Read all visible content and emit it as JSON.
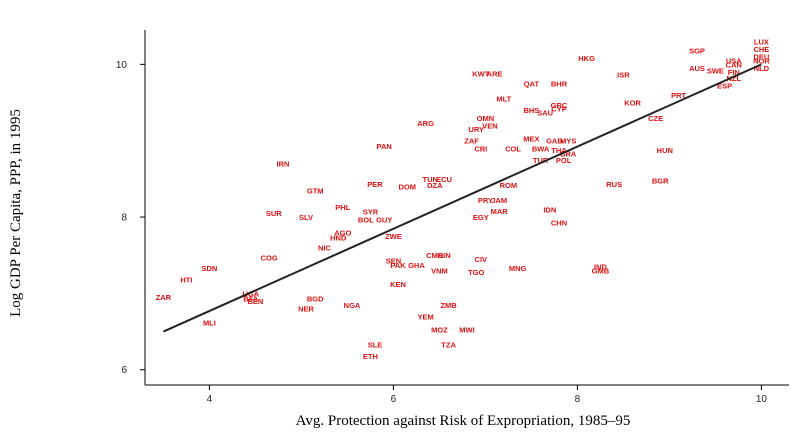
{
  "chart_data": {
    "type": "scatter",
    "title": "",
    "xlabel": "Avg. Protection against Risk of Expropriation, 1985–95",
    "ylabel": "Log GDP Per Capita, PPP, in 1995",
    "xlim": [
      3.3,
      10.3
    ],
    "ylim": [
      5.8,
      10.45
    ],
    "xticks": [
      4,
      6,
      8,
      10
    ],
    "yticks": [
      6,
      8,
      10
    ],
    "grid": false,
    "legend": "none",
    "point_color": "#e01010",
    "line_color": "#222222",
    "fit_line": {
      "x": [
        3.5,
        10.0
      ],
      "y": [
        6.5,
        10.0
      ]
    },
    "points": [
      {
        "label": "LUX",
        "x": 10.0,
        "y": 10.3
      },
      {
        "label": "CHE",
        "x": 10.0,
        "y": 10.2
      },
      {
        "label": "DEU",
        "x": 10.0,
        "y": 10.1
      },
      {
        "label": "NOR",
        "x": 10.0,
        "y": 10.05
      },
      {
        "label": "NLD",
        "x": 10.0,
        "y": 9.95
      },
      {
        "label": "SGP",
        "x": 9.3,
        "y": 10.18
      },
      {
        "label": "USA",
        "x": 9.7,
        "y": 10.05
      },
      {
        "label": "CAN",
        "x": 9.7,
        "y": 10.0
      },
      {
        "label": "AUS",
        "x": 9.3,
        "y": 9.95
      },
      {
        "label": "SWE",
        "x": 9.5,
        "y": 9.92
      },
      {
        "label": "FIN",
        "x": 9.7,
        "y": 9.9
      },
      {
        "label": "NZL",
        "x": 9.7,
        "y": 9.82
      },
      {
        "label": "ESP",
        "x": 9.6,
        "y": 9.72
      },
      {
        "label": "PRT",
        "x": 9.1,
        "y": 9.6
      },
      {
        "label": "HKG",
        "x": 8.1,
        "y": 10.08
      },
      {
        "label": "ISR",
        "x": 8.5,
        "y": 9.87
      },
      {
        "label": "KWT",
        "x": 6.95,
        "y": 9.88
      },
      {
        "label": "ARE",
        "x": 7.1,
        "y": 9.88
      },
      {
        "label": "QAT",
        "x": 7.5,
        "y": 9.75
      },
      {
        "label": "BHR",
        "x": 7.8,
        "y": 9.75
      },
      {
        "label": "MLT",
        "x": 7.2,
        "y": 9.55
      },
      {
        "label": "BHS",
        "x": 7.5,
        "y": 9.4
      },
      {
        "label": "SAU",
        "x": 7.65,
        "y": 9.37
      },
      {
        "label": "GRC",
        "x": 7.8,
        "y": 9.47
      },
      {
        "label": "CYP",
        "x": 7.8,
        "y": 9.42
      },
      {
        "label": "KOR",
        "x": 8.6,
        "y": 9.5
      },
      {
        "label": "CZE",
        "x": 8.85,
        "y": 9.3
      },
      {
        "label": "OMN",
        "x": 7.0,
        "y": 9.3
      },
      {
        "label": "VEN",
        "x": 7.05,
        "y": 9.2
      },
      {
        "label": "URY",
        "x": 6.9,
        "y": 9.15
      },
      {
        "label": "ARG",
        "x": 6.35,
        "y": 9.23
      },
      {
        "label": "ZAF",
        "x": 6.85,
        "y": 9.0
      },
      {
        "label": "CRI",
        "x": 6.95,
        "y": 8.9
      },
      {
        "label": "COL",
        "x": 7.3,
        "y": 8.9
      },
      {
        "label": "MEX",
        "x": 7.5,
        "y": 9.03
      },
      {
        "label": "GAB",
        "x": 7.75,
        "y": 9.0
      },
      {
        "label": "MYS",
        "x": 7.9,
        "y": 9.0
      },
      {
        "label": "BWA",
        "x": 7.6,
        "y": 8.9
      },
      {
        "label": "THA",
        "x": 7.8,
        "y": 8.88
      },
      {
        "label": "BRA",
        "x": 7.9,
        "y": 8.83
      },
      {
        "label": "TUR",
        "x": 7.6,
        "y": 8.75
      },
      {
        "label": "POL",
        "x": 7.85,
        "y": 8.75
      },
      {
        "label": "HUN",
        "x": 8.95,
        "y": 8.88
      },
      {
        "label": "RUS",
        "x": 8.4,
        "y": 8.43
      },
      {
        "label": "BGR",
        "x": 8.9,
        "y": 8.48
      },
      {
        "label": "PAN",
        "x": 5.9,
        "y": 8.93
      },
      {
        "label": "IRN",
        "x": 4.8,
        "y": 8.7
      },
      {
        "label": "PER",
        "x": 5.8,
        "y": 8.43
      },
      {
        "label": "DOM",
        "x": 6.15,
        "y": 8.4
      },
      {
        "label": "TUN",
        "x": 6.4,
        "y": 8.5
      },
      {
        "label": "ECU",
        "x": 6.55,
        "y": 8.5
      },
      {
        "label": "DZA",
        "x": 6.45,
        "y": 8.42
      },
      {
        "label": "ROM",
        "x": 7.25,
        "y": 8.42
      },
      {
        "label": "GTM",
        "x": 5.15,
        "y": 8.35
      },
      {
        "label": "PHL",
        "x": 5.45,
        "y": 8.13
      },
      {
        "label": "SUR",
        "x": 4.7,
        "y": 8.05
      },
      {
        "label": "SLV",
        "x": 5.05,
        "y": 8.0
      },
      {
        "label": "SYR",
        "x": 5.75,
        "y": 8.07
      },
      {
        "label": "BOL",
        "x": 5.7,
        "y": 7.97
      },
      {
        "label": "GUY",
        "x": 5.9,
        "y": 7.97
      },
      {
        "label": "PRY",
        "x": 7.0,
        "y": 8.22
      },
      {
        "label": "JAM",
        "x": 7.15,
        "y": 8.22
      },
      {
        "label": "EGY",
        "x": 6.95,
        "y": 8.0
      },
      {
        "label": "MAR",
        "x": 7.15,
        "y": 8.08
      },
      {
        "label": "IDN",
        "x": 7.7,
        "y": 8.1
      },
      {
        "label": "CHN",
        "x": 7.8,
        "y": 7.93
      },
      {
        "label": "AGO",
        "x": 5.45,
        "y": 7.8
      },
      {
        "label": "HND",
        "x": 5.4,
        "y": 7.73
      },
      {
        "label": "ZWE",
        "x": 6.0,
        "y": 7.75
      },
      {
        "label": "NIC",
        "x": 5.25,
        "y": 7.6
      },
      {
        "label": "COG",
        "x": 4.65,
        "y": 7.47
      },
      {
        "label": "CMR",
        "x": 6.45,
        "y": 7.5
      },
      {
        "label": "GIN",
        "x": 6.55,
        "y": 7.5
      },
      {
        "label": "SEN",
        "x": 6.0,
        "y": 7.43
      },
      {
        "label": "PAK",
        "x": 6.05,
        "y": 7.37
      },
      {
        "label": "GHA",
        "x": 6.25,
        "y": 7.37
      },
      {
        "label": "VNM",
        "x": 6.5,
        "y": 7.3
      },
      {
        "label": "CIV",
        "x": 6.95,
        "y": 7.45
      },
      {
        "label": "TGO",
        "x": 6.9,
        "y": 7.28
      },
      {
        "label": "MNG",
        "x": 7.35,
        "y": 7.33
      },
      {
        "label": "IND",
        "x": 8.25,
        "y": 7.35
      },
      {
        "label": "GMB",
        "x": 8.25,
        "y": 7.3
      },
      {
        "label": "SDN",
        "x": 4.0,
        "y": 7.33
      },
      {
        "label": "HTI",
        "x": 3.75,
        "y": 7.18
      },
      {
        "label": "KEN",
        "x": 6.05,
        "y": 7.12
      },
      {
        "label": "UGA",
        "x": 4.45,
        "y": 7.0
      },
      {
        "label": "BFA",
        "x": 4.45,
        "y": 6.93
      },
      {
        "label": "BEN",
        "x": 4.5,
        "y": 6.9
      },
      {
        "label": "ZAR",
        "x": 3.5,
        "y": 6.95
      },
      {
        "label": "BGD",
        "x": 5.15,
        "y": 6.93
      },
      {
        "label": "NER",
        "x": 5.05,
        "y": 6.8
      },
      {
        "label": "NGA",
        "x": 5.55,
        "y": 6.85
      },
      {
        "label": "ZMB",
        "x": 6.6,
        "y": 6.85
      },
      {
        "label": "YEM",
        "x": 6.35,
        "y": 6.7
      },
      {
        "label": "MLI",
        "x": 4.0,
        "y": 6.62
      },
      {
        "label": "MOZ",
        "x": 6.5,
        "y": 6.53
      },
      {
        "label": "MWI",
        "x": 6.8,
        "y": 6.53
      },
      {
        "label": "SLE",
        "x": 5.8,
        "y": 6.33
      },
      {
        "label": "TZA",
        "x": 6.6,
        "y": 6.33
      },
      {
        "label": "ETH",
        "x": 5.75,
        "y": 6.18
      }
    ]
  }
}
